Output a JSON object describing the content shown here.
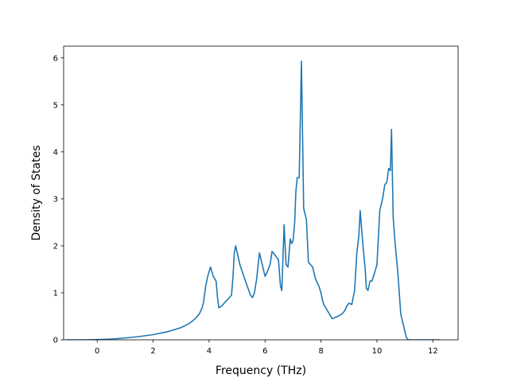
{
  "chart_data": {
    "type": "line",
    "title": "",
    "xlabel": "Frequency (THz)",
    "ylabel": "Density of States",
    "xlim": [
      -1.2,
      12.9
    ],
    "ylim": [
      0,
      6.25
    ],
    "x_ticks": [
      0,
      2,
      4,
      6,
      8,
      10,
      12
    ],
    "y_ticks": [
      0,
      1,
      2,
      3,
      4,
      5,
      6
    ],
    "grid": false,
    "legend": "none",
    "line_color": "#1f77b4",
    "series": [
      {
        "x": [
          -1.12,
          -0.5,
          0.0,
          0.5,
          1.0,
          1.5,
          2.0,
          2.5,
          3.0,
          3.3,
          3.5,
          3.65,
          3.75,
          3.8,
          3.88,
          3.95,
          4.05,
          4.15,
          4.25,
          4.3,
          4.35,
          4.45,
          4.6,
          4.7,
          4.8,
          4.85,
          4.9,
          4.95,
          5.1,
          5.3,
          5.42,
          5.48,
          5.55,
          5.62,
          5.7,
          5.8,
          5.92,
          6.0,
          6.08,
          6.18,
          6.25,
          6.3,
          6.36,
          6.42,
          6.48,
          6.55,
          6.6,
          6.68,
          6.75,
          6.82,
          6.9,
          6.95,
          7.0,
          7.06,
          7.1,
          7.15,
          7.22,
          7.3,
          7.38,
          7.48,
          7.55,
          7.7,
          7.8,
          7.92,
          8.0,
          8.05,
          8.1,
          8.2,
          8.4,
          8.6,
          8.75,
          8.85,
          8.92,
          9.0,
          9.1,
          9.2,
          9.28,
          9.35,
          9.4,
          9.5,
          9.58,
          9.62,
          9.68,
          9.75,
          9.82,
          9.9,
          10.0,
          10.1,
          10.2,
          10.28,
          10.35,
          10.42,
          10.48,
          10.52,
          10.58,
          10.65,
          10.75,
          10.85,
          10.95,
          11.05,
          11.12,
          11.2,
          12.25
        ],
        "y": [
          0,
          0,
          0.005,
          0.015,
          0.04,
          0.07,
          0.11,
          0.17,
          0.26,
          0.35,
          0.45,
          0.55,
          0.68,
          0.8,
          1.15,
          1.35,
          1.55,
          1.35,
          1.25,
          0.9,
          0.68,
          0.72,
          0.82,
          0.88,
          0.95,
          1.3,
          1.85,
          2.0,
          1.6,
          1.25,
          1.05,
          0.95,
          0.9,
          1.0,
          1.3,
          1.85,
          1.55,
          1.35,
          1.45,
          1.6,
          1.88,
          1.85,
          1.8,
          1.75,
          1.7,
          1.15,
          1.05,
          2.45,
          1.6,
          1.55,
          2.15,
          2.05,
          2.1,
          2.5,
          3.15,
          3.45,
          3.45,
          5.93,
          2.8,
          2.55,
          1.65,
          1.55,
          1.3,
          1.15,
          1.0,
          0.85,
          0.75,
          0.65,
          0.45,
          0.5,
          0.55,
          0.62,
          0.72,
          0.78,
          0.75,
          1.05,
          1.85,
          2.2,
          2.75,
          2.0,
          1.5,
          1.1,
          1.05,
          1.25,
          1.25,
          1.4,
          1.6,
          2.75,
          3.0,
          3.3,
          3.35,
          3.65,
          3.6,
          4.48,
          2.6,
          2.05,
          1.4,
          0.55,
          0.3,
          0.05,
          0,
          0,
          0
        ]
      }
    ]
  }
}
